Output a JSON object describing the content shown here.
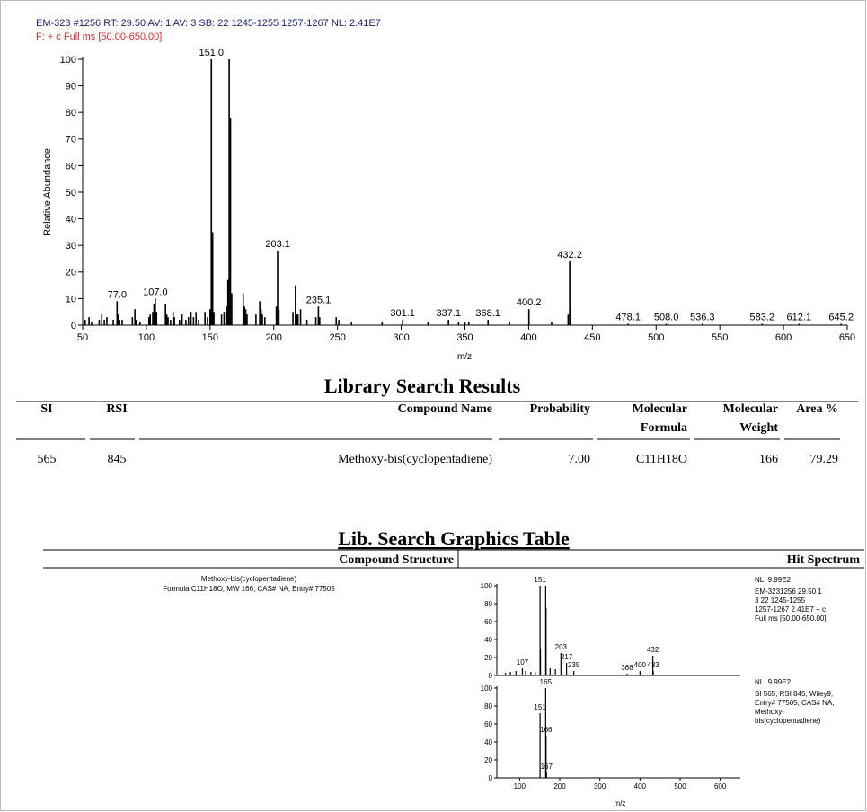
{
  "chart_data": [
    {
      "type": "bar",
      "title": "EM-323 #1256  RT: 29.50  AV: 1  AV: 3  SB: 22 1245-1255 1257-1267  NL: 2.41E7",
      "subtitle": "F: + c Full ms [50.00-650.00]",
      "y_label": "Relative Abundance",
      "x_label": "m/z",
      "color": "#000000",
      "x": [
        52,
        55,
        57,
        63,
        65,
        67,
        69,
        74,
        77,
        78,
        79,
        81,
        89,
        91,
        92,
        95,
        102,
        103,
        105,
        106,
        107,
        108,
        115,
        116,
        117,
        119,
        121,
        122,
        126,
        128,
        131,
        133,
        135,
        137,
        139,
        141,
        146,
        148,
        150,
        151,
        152,
        153,
        159,
        161,
        163,
        164,
        165,
        166,
        167,
        176,
        177,
        178,
        179,
        186,
        189,
        190,
        191,
        193,
        202,
        203,
        204,
        215,
        217,
        218,
        219,
        221,
        226,
        233,
        235,
        236,
        249,
        251,
        261,
        285,
        301.1,
        321,
        337.1,
        345,
        350,
        353,
        368.1,
        385,
        400.2,
        418,
        431,
        432.2,
        433,
        478.1,
        508,
        536.3,
        583.2,
        612.1,
        645.2
      ],
      "values": [
        2,
        3,
        1,
        2,
        4,
        2,
        3,
        2,
        9,
        4,
        2,
        2,
        3,
        6,
        2,
        1,
        3,
        4,
        5,
        8,
        10,
        5,
        8,
        4,
        3,
        2,
        5,
        3,
        2,
        4,
        2,
        3,
        5,
        3,
        5,
        2,
        5,
        3,
        6,
        100,
        35,
        5,
        4,
        5,
        7,
        17,
        100,
        78,
        12,
        12,
        7,
        6,
        4,
        4,
        9,
        6,
        4,
        3,
        7,
        28,
        6,
        5,
        15,
        4,
        4,
        6,
        2,
        3,
        7,
        3,
        3,
        2,
        1,
        1,
        2,
        1,
        2,
        1,
        1,
        1,
        2,
        1,
        6,
        1,
        4,
        24,
        6,
        0.5,
        0.5,
        0.5,
        0.5,
        0.5,
        0.5
      ],
      "annotations": [
        {
          "x": 77,
          "y": 9,
          "label": "77.0"
        },
        {
          "x": 107,
          "y": 10,
          "label": "107.0"
        },
        {
          "x": 151,
          "y": 100,
          "label": "151.0"
        },
        {
          "x": 203.1,
          "y": 28,
          "label": "203.1"
        },
        {
          "x": 235.1,
          "y": 7,
          "label": "235.1"
        },
        {
          "x": 301.1,
          "y": 2,
          "label": "301.1"
        },
        {
          "x": 337.1,
          "y": 2,
          "label": "337.1"
        },
        {
          "x": 368.1,
          "y": 2,
          "label": "368.1"
        },
        {
          "x": 400.2,
          "y": 6,
          "label": "400.2"
        },
        {
          "x": 432.2,
          "y": 24,
          "label": "432.2"
        },
        {
          "x": 478.1,
          "y": 0.5,
          "label": "478.1"
        },
        {
          "x": 508,
          "y": 0.5,
          "label": "508.0"
        },
        {
          "x": 536.3,
          "y": 0.5,
          "label": "536.3"
        },
        {
          "x": 583.2,
          "y": 0.5,
          "label": "583.2"
        },
        {
          "x": 612.1,
          "y": 0.5,
          "label": "612.1"
        },
        {
          "x": 645.2,
          "y": 0.5,
          "label": "645.2"
        }
      ],
      "xlim": [
        50,
        650
      ],
      "xticks": [
        50,
        100,
        150,
        200,
        250,
        300,
        350,
        400,
        450,
        500,
        550,
        600,
        650
      ],
      "ylim": [
        0,
        100
      ],
      "yticks": [
        0,
        10,
        20,
        30,
        40,
        50,
        60,
        70,
        80,
        90,
        100
      ]
    },
    {
      "type": "bar",
      "color": "#000000",
      "notes": [
        "NL: 9.99E2",
        "EM-3231256  29.50  1",
        "3  22 1245-1255",
        "1257-1267  2.41E7  + c",
        "Full ms [50.00-650.00]"
      ],
      "x": [
        65,
        77,
        91,
        107,
        115,
        128,
        139,
        151,
        152,
        165,
        166,
        176,
        189,
        203,
        217,
        235,
        368,
        400,
        432,
        433
      ],
      "values": [
        3,
        4,
        5,
        8,
        5,
        4,
        4,
        100,
        30,
        100,
        75,
        8,
        7,
        25,
        14,
        5,
        2,
        5,
        22,
        5
      ],
      "annotations": [
        {
          "x": 107,
          "y": 8,
          "label": "107"
        },
        {
          "x": 151,
          "y": 100,
          "label": "151"
        },
        {
          "x": 203,
          "y": 25,
          "label": "203"
        },
        {
          "x": 217,
          "y": 14,
          "label": "217"
        },
        {
          "x": 235,
          "y": 5,
          "label": "235"
        },
        {
          "x": 368,
          "y": 2,
          "label": "368"
        },
        {
          "x": 400,
          "y": 5,
          "label": "400"
        },
        {
          "x": 432,
          "y": 22,
          "label": "432"
        },
        {
          "x": 433,
          "y": 5,
          "label": "433"
        }
      ],
      "xlim": [
        50,
        650
      ],
      "ylim": [
        0,
        100
      ],
      "yticks": [
        0,
        20,
        40,
        60,
        80,
        100
      ]
    },
    {
      "type": "bar",
      "color": "#000000",
      "x_label": "m/z",
      "notes": [
        "NL: 9.99E2",
        "SI 565, RSI 845, Wiley9,",
        "Entry# 77505, CAS# NA,",
        "Methoxy-",
        "bis(cyclopentadiene)"
      ],
      "x": [
        151,
        165,
        166,
        167
      ],
      "values": [
        72,
        100,
        47,
        6
      ],
      "annotations": [
        {
          "x": 151,
          "y": 72,
          "label": "151"
        },
        {
          "x": 165,
          "y": 100,
          "label": "165"
        },
        {
          "x": 166,
          "y": 47,
          "label": "166"
        },
        {
          "x": 167,
          "y": 6,
          "label": "167"
        }
      ],
      "xlim": [
        50,
        650
      ],
      "xticks": [
        100,
        200,
        300,
        400,
        500,
        600
      ],
      "ylim": [
        0,
        100
      ],
      "yticks": [
        0,
        20,
        40,
        60,
        80,
        100
      ]
    }
  ],
  "library_search": {
    "title": "Library Search Results",
    "columns": [
      [
        "SI"
      ],
      [
        "RSI"
      ],
      [
        "Compound Name"
      ],
      [
        "Probability"
      ],
      [
        "Molecular",
        "Formula"
      ],
      [
        "Molecular",
        "Weight"
      ],
      [
        "Area %"
      ]
    ],
    "rows": [
      [
        "565",
        "845",
        "Methoxy-bis(cyclopentadiene)",
        "7.00",
        "C11H18O",
        "166",
        "79.29"
      ]
    ]
  },
  "graphics_table": {
    "title": "Lib. Search Graphics Table",
    "columns": [
      "Compound Structure",
      "Hit Spectrum"
    ],
    "compound_lines": [
      "Methoxy-bis(cyclopentadiene)",
      "Formula C11H18O, MW 166, CAS# NA, Entry# 77505"
    ]
  }
}
